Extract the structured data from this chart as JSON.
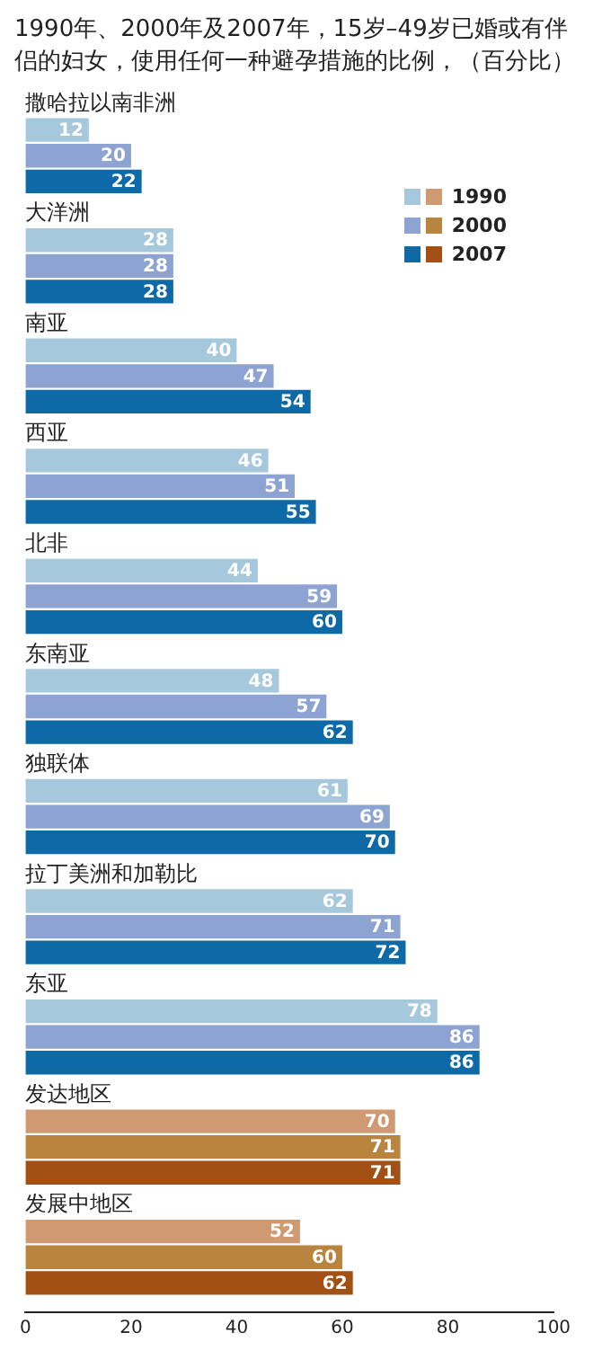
{
  "chart_data": {
    "type": "bar",
    "orientation": "horizontal",
    "title": "1990年、2000年及2007年，15岁–49岁已婚或有伴侣的妇女，使用任何一种避孕措施的比例，（百分比）",
    "categories": [
      "撒哈拉以南非洲",
      "大洋洲",
      "南亚",
      "西亚",
      "北非",
      "东南亚",
      "独联体",
      "拉丁美洲和加勒比",
      "东亚",
      "发达地区",
      "发展中地区"
    ],
    "series": [
      {
        "name": "1990",
        "colors": [
          "#a6c8dc",
          "#a6c8dc",
          "#a6c8dc",
          "#a6c8dc",
          "#a6c8dc",
          "#a6c8dc",
          "#a6c8dc",
          "#a6c8dc",
          "#a6c8dc",
          "#cf9a72",
          "#cf9a72"
        ],
        "values": [
          12,
          28,
          40,
          46,
          44,
          48,
          61,
          62,
          78,
          70,
          52
        ]
      },
      {
        "name": "2000",
        "colors": [
          "#8da3d2",
          "#8da3d2",
          "#8da3d2",
          "#8da3d2",
          "#8da3d2",
          "#8da3d2",
          "#8da3d2",
          "#8da3d2",
          "#8da3d2",
          "#b8843e",
          "#b8843e"
        ],
        "values": [
          20,
          28,
          47,
          51,
          59,
          57,
          69,
          71,
          86,
          71,
          60
        ]
      },
      {
        "name": "2007",
        "colors": [
          "#0d6aa6",
          "#0d6aa6",
          "#0d6aa6",
          "#0d6aa6",
          "#0d6aa6",
          "#0d6aa6",
          "#0d6aa6",
          "#0d6aa6",
          "#0d6aa6",
          "#a35015",
          "#a35015"
        ],
        "values": [
          22,
          28,
          54,
          55,
          60,
          62,
          70,
          72,
          86,
          71,
          62
        ]
      }
    ],
    "xlim": [
      0,
      100
    ],
    "xticks": [
      0,
      20,
      40,
      60,
      80,
      100
    ],
    "grid": false,
    "legend": "top right",
    "data_labels": true
  }
}
